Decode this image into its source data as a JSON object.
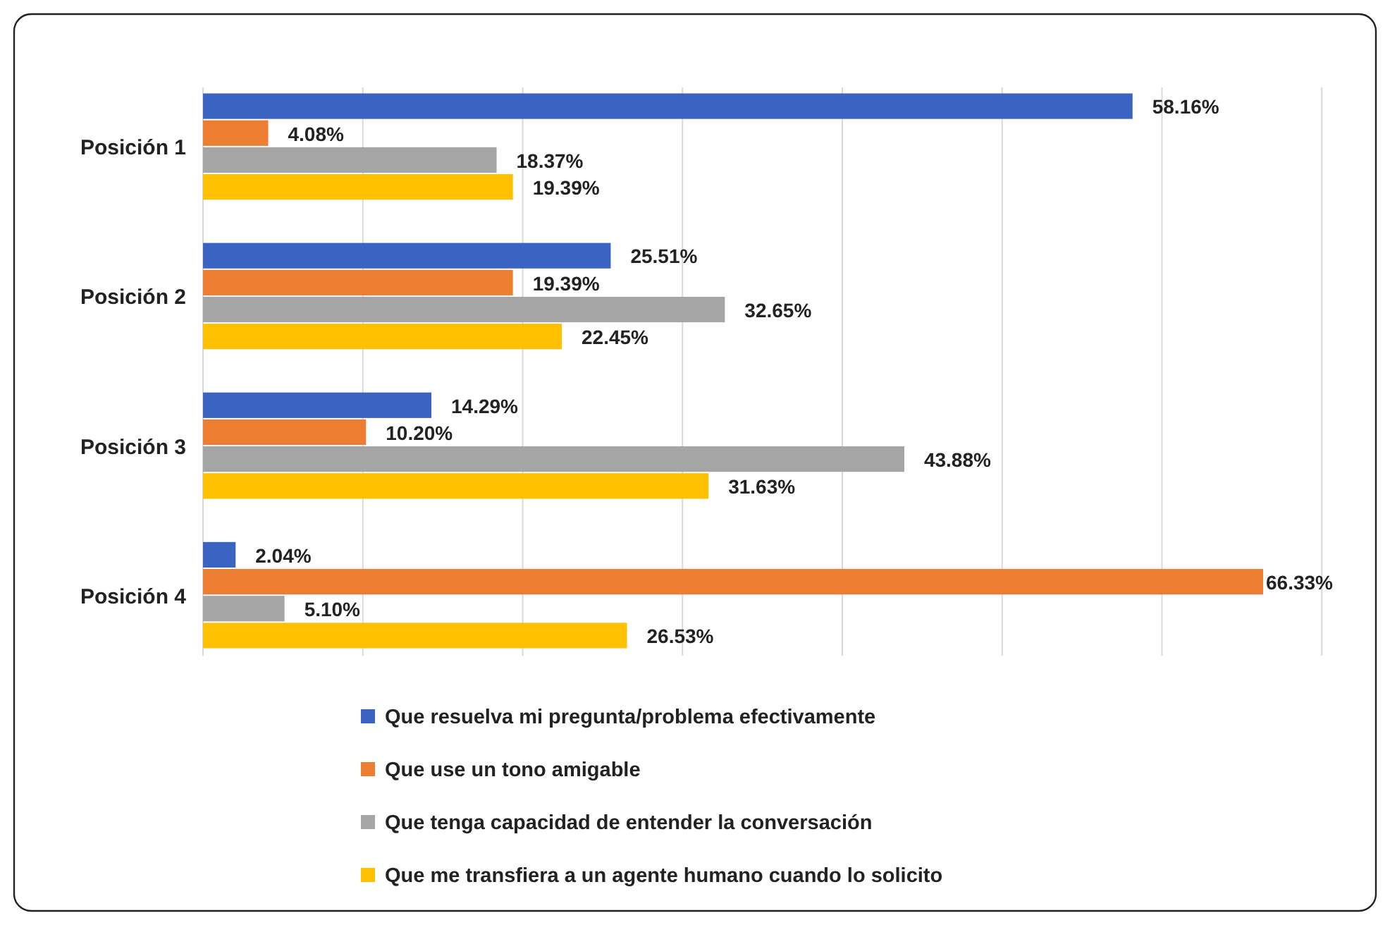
{
  "chart_data": {
    "type": "bar",
    "orientation": "horizontal",
    "categories": [
      "Posición 1",
      "Posición 2",
      "Posición 3",
      "Posición 4"
    ],
    "series": [
      {
        "name": "Que resuelva mi pregunta/problema efectivamente",
        "color": "#3a63c2",
        "values": [
          58.16,
          25.51,
          14.29,
          2.04
        ],
        "value_labels": [
          "58.16%",
          "25.51%",
          "14.29%",
          "2.04%"
        ]
      },
      {
        "name": "Que use un tono amigable",
        "color": "#ed7d31",
        "values": [
          4.08,
          19.39,
          10.2,
          66.33
        ],
        "value_labels": [
          "4.08%",
          "19.39%",
          "10.20%",
          "66.33%"
        ]
      },
      {
        "name": "Que tenga capacidad de entender la conversación",
        "color": "#a5a5a5",
        "values": [
          18.37,
          32.65,
          43.88,
          5.1
        ],
        "value_labels": [
          "18.37%",
          "32.65%",
          "43.88%",
          "5.10%"
        ]
      },
      {
        "name": "Que me transfiera a un agente humano cuando lo solicito",
        "color": "#ffc000",
        "values": [
          19.39,
          22.45,
          31.63,
          26.53
        ],
        "value_labels": [
          "19.39%",
          "22.45%",
          "31.63%",
          "26.53%"
        ]
      }
    ],
    "tick_labels": "y",
    "grid": "x",
    "legend": "bottom"
  }
}
